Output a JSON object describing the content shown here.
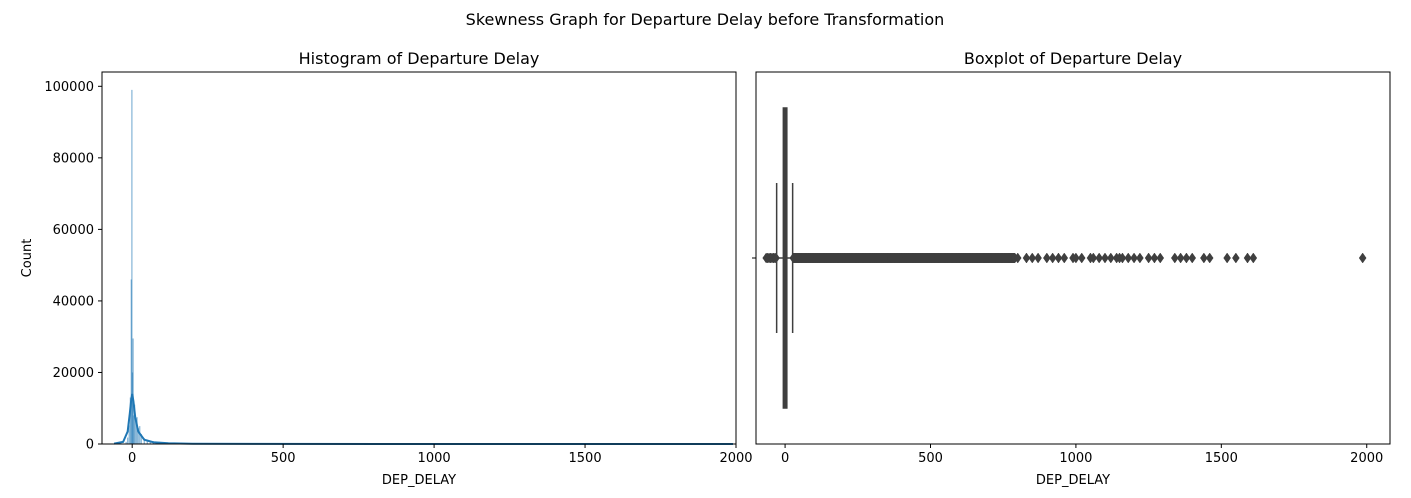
{
  "figure": {
    "suptitle": "Skewness Graph for Departure Delay before Transformation"
  },
  "chart_data": [
    {
      "type": "bar",
      "subtype": "histogram_with_kde",
      "title": "Histogram of Departure Delay",
      "xlabel": "DEP_DELAY",
      "ylabel": "Count",
      "xlim": [
        -100,
        2000
      ],
      "ylim": [
        0,
        104000
      ],
      "xticks": [
        0,
        500,
        1000,
        1500,
        2000
      ],
      "yticks": [
        0,
        20000,
        40000,
        60000,
        80000,
        100000
      ],
      "grid": false,
      "color": "#1f77b4",
      "bins": [
        {
          "x": -20,
          "count": 600
        },
        {
          "x": -15,
          "count": 1800
        },
        {
          "x": -10,
          "count": 5200
        },
        {
          "x": -6,
          "count": 13000
        },
        {
          "x": -3,
          "count": 46000
        },
        {
          "x": -1,
          "count": 99000
        },
        {
          "x": 1,
          "count": 20000
        },
        {
          "x": 3,
          "count": 29500
        },
        {
          "x": 5,
          "count": 8000
        },
        {
          "x": 8,
          "count": 11000
        },
        {
          "x": 12,
          "count": 6500
        },
        {
          "x": 16,
          "count": 7500
        },
        {
          "x": 20,
          "count": 4500
        },
        {
          "x": 25,
          "count": 5000
        },
        {
          "x": 30,
          "count": 2800
        },
        {
          "x": 40,
          "count": 1600
        },
        {
          "x": 50,
          "count": 1200
        },
        {
          "x": 60,
          "count": 900
        },
        {
          "x": 70,
          "count": 800
        },
        {
          "x": 80,
          "count": 700
        },
        {
          "x": 90,
          "count": 600
        },
        {
          "x": 100,
          "count": 500
        },
        {
          "x": 120,
          "count": 350
        },
        {
          "x": 150,
          "count": 250
        },
        {
          "x": 200,
          "count": 150
        },
        {
          "x": 300,
          "count": 80
        },
        {
          "x": 500,
          "count": 30
        },
        {
          "x": 800,
          "count": 10
        }
      ],
      "kde": [
        {
          "x": -60,
          "y": 100
        },
        {
          "x": -30,
          "y": 600
        },
        {
          "x": -15,
          "y": 3500
        },
        {
          "x": -8,
          "y": 8500
        },
        {
          "x": -3,
          "y": 12500
        },
        {
          "x": 0,
          "y": 14000
        },
        {
          "x": 4,
          "y": 12000
        },
        {
          "x": 10,
          "y": 7500
        },
        {
          "x": 20,
          "y": 3500
        },
        {
          "x": 40,
          "y": 1200
        },
        {
          "x": 70,
          "y": 500
        },
        {
          "x": 120,
          "y": 200
        },
        {
          "x": 200,
          "y": 80
        },
        {
          "x": 400,
          "y": 30
        },
        {
          "x": 1000,
          "y": 10
        },
        {
          "x": 1990,
          "y": 0
        }
      ]
    },
    {
      "type": "boxplot",
      "title": "Boxplot of Departure Delay",
      "xlabel": "DEP_DELAY",
      "xlim": [
        -100,
        2080
      ],
      "xticks": [
        0,
        500,
        1000,
        1500,
        2000
      ],
      "grid": false,
      "color": "#3f3f3f",
      "box": {
        "q1": -6,
        "median": -2,
        "q3": 6,
        "whisker_low": -29,
        "whisker_high": 26
      },
      "low_outliers": [
        -65,
        -60,
        -55,
        -50,
        -45,
        -40,
        -35,
        -31
      ],
      "high_outliers_dense_range": [
        28,
        790
      ],
      "high_outliers_sparse": [
        800,
        830,
        850,
        870,
        900,
        920,
        940,
        960,
        990,
        1000,
        1020,
        1050,
        1060,
        1080,
        1100,
        1120,
        1140,
        1150,
        1160,
        1180,
        1200,
        1220,
        1250,
        1270,
        1290,
        1340,
        1360,
        1380,
        1400,
        1440,
        1460,
        1520,
        1550,
        1590,
        1610,
        1986
      ]
    }
  ]
}
